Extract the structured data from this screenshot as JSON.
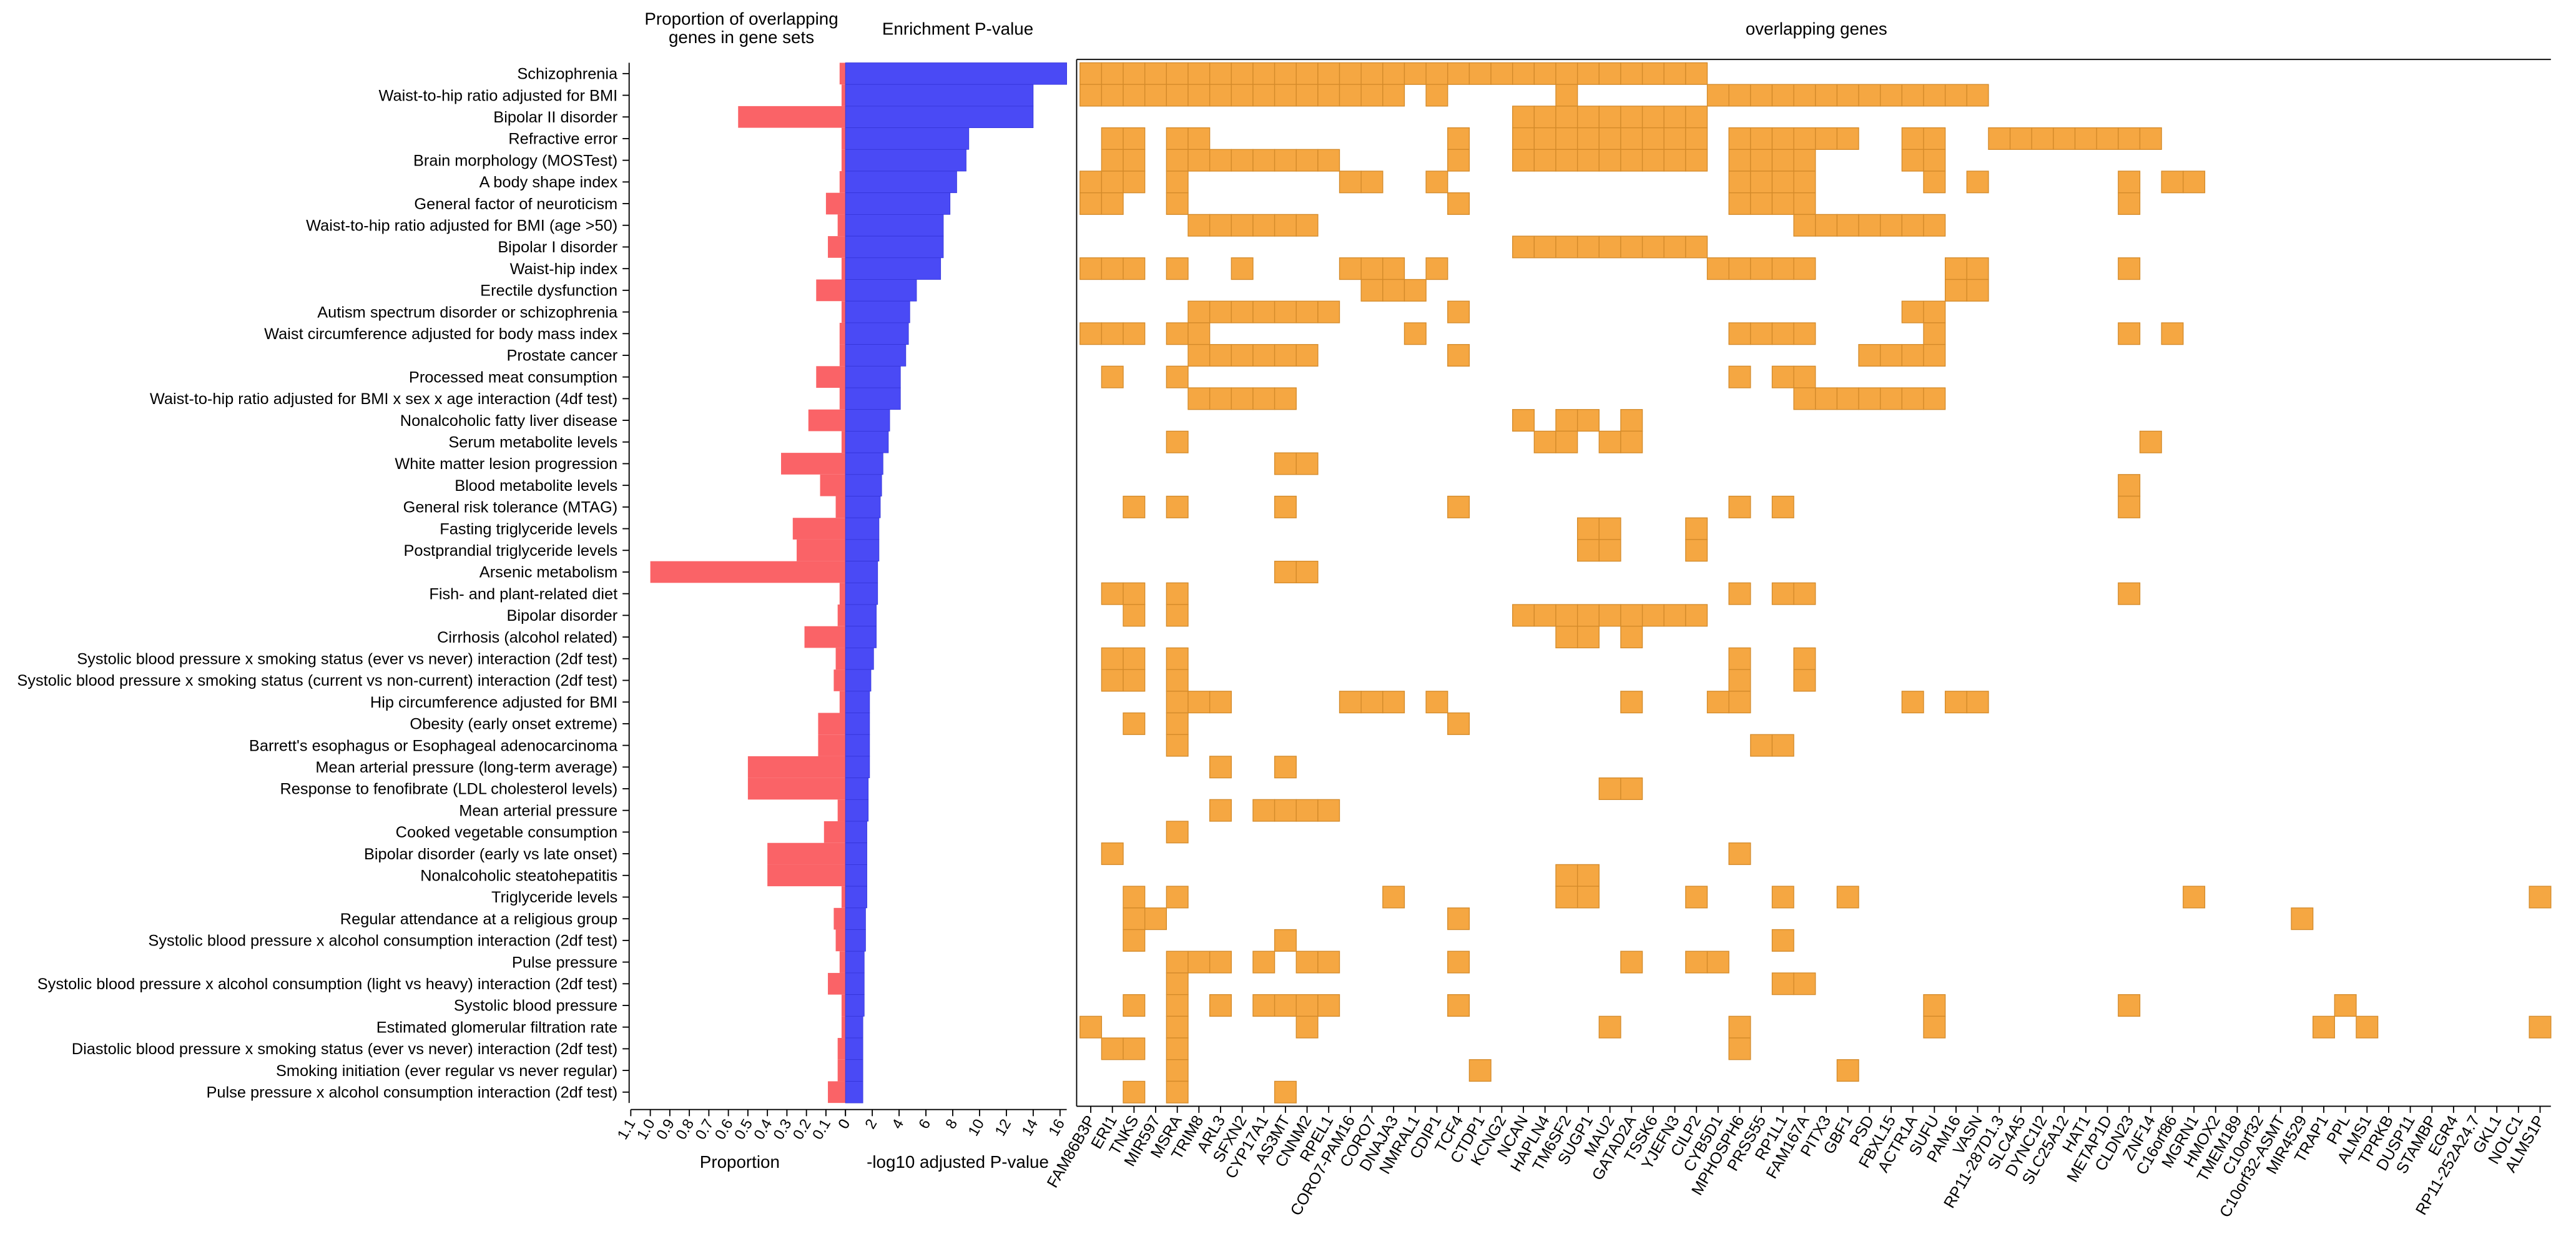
{
  "headers": {
    "proportion_top": "Proportion of overlapping genes in gene sets",
    "enrichment_top": "Enrichment P-value",
    "genes_top": "overlapping genes",
    "proportion_axis": "Proportion",
    "pvalue_axis": "-log10 adjusted P-value"
  },
  "colors": {
    "proportion_bar": "#fa6367",
    "pvalue_bar": "#4a4af5",
    "cell": "#f5a742",
    "cell_border": "#d38a2a"
  },
  "chart_data": {
    "type": "heatmap",
    "gene_sets": [
      "Schizophrenia",
      "Waist-to-hip ratio adjusted for BMI",
      "Bipolar II disorder",
      "Refractive error",
      "Brain morphology (MOSTest)",
      "A body shape index",
      "General factor of neuroticism",
      "Waist-to-hip ratio adjusted for BMI (age >50)",
      "Bipolar I disorder",
      "Waist-hip index",
      "Erectile dysfunction",
      "Autism spectrum disorder or schizophrenia",
      "Waist circumference adjusted for body mass index",
      "Prostate cancer",
      "Processed meat consumption",
      "Waist-to-hip ratio adjusted for BMI x sex x age interaction (4df test)",
      "Nonalcoholic fatty liver disease",
      "Serum metabolite levels",
      "White matter lesion progression",
      "Blood metabolite levels",
      "General risk tolerance (MTAG)",
      "Fasting triglyceride levels",
      "Postprandial triglyceride levels",
      "Arsenic metabolism",
      "Fish- and plant-related diet",
      "Bipolar disorder",
      "Cirrhosis (alcohol related)",
      "Systolic blood pressure x smoking status (ever vs never) interaction (2df test)",
      "Systolic blood pressure x smoking status (current vs non-current) interaction (2df test)",
      "Hip circumference adjusted for BMI",
      "Obesity (early onset extreme)",
      "Barrett's esophagus or Esophageal adenocarcinoma",
      "Mean arterial pressure (long-term average)",
      "Response to fenofibrate (LDL cholesterol levels)",
      "Mean arterial pressure",
      "Cooked vegetable consumption",
      "Bipolar disorder (early vs late onset)",
      "Nonalcoholic steatohepatitis",
      "Triglyceride levels",
      "Regular attendance at a religious group",
      "Systolic blood pressure x alcohol consumption interaction (2df test)",
      "Pulse pressure",
      "Systolic blood pressure x alcohol consumption (light vs heavy) interaction (2df test)",
      "Systolic blood pressure",
      "Estimated glomerular filtration rate",
      "Diastolic blood pressure x smoking status (ever vs never) interaction (2df test)",
      "Smoking initiation (ever regular vs never regular)",
      "Pulse pressure x alcohol consumption interaction (2df test)"
    ],
    "proportion": [
      0.03,
      0.02,
      0.55,
      0.02,
      0.02,
      0.03,
      0.1,
      0.04,
      0.09,
      0.02,
      0.15,
      0.02,
      0.03,
      0.03,
      0.15,
      0.03,
      0.19,
      0.02,
      0.33,
      0.13,
      0.05,
      0.27,
      0.25,
      1.0,
      0.03,
      0.04,
      0.21,
      0.05,
      0.06,
      0.03,
      0.14,
      0.14,
      0.5,
      0.5,
      0.04,
      0.11,
      0.4,
      0.4,
      0.02,
      0.06,
      0.05,
      0.03,
      0.09,
      0.02,
      0.02,
      0.04,
      0.04,
      0.09
    ],
    "neg_log10_p": [
      16.5,
      14.0,
      14.0,
      9.2,
      9.0,
      8.3,
      7.8,
      7.3,
      7.3,
      7.1,
      5.3,
      4.8,
      4.7,
      4.5,
      4.1,
      4.1,
      3.3,
      3.2,
      2.8,
      2.7,
      2.6,
      2.5,
      2.5,
      2.4,
      2.4,
      2.3,
      2.3,
      2.1,
      1.9,
      1.8,
      1.8,
      1.8,
      1.8,
      1.7,
      1.7,
      1.6,
      1.6,
      1.6,
      1.6,
      1.5,
      1.5,
      1.4,
      1.4,
      1.4,
      1.3,
      1.3,
      1.3,
      1.3
    ],
    "proportion_ticks": [
      "1.1",
      "1.0",
      "0.9",
      "0.8",
      "0.7",
      "0.6",
      "0.5",
      "0.4",
      "0.3",
      "0.2",
      "0.1",
      "0"
    ],
    "proportion_range": [
      0,
      1.1
    ],
    "pvalue_ticks": [
      "0",
      "2",
      "4",
      "6",
      "8",
      "10",
      "12",
      "14",
      "16"
    ],
    "pvalue_range": [
      0,
      16.5
    ],
    "genes": [
      "FAM86B3P",
      "ERI1",
      "TNKS",
      "MIR597",
      "MSRA",
      "TRIM8",
      "ARL3",
      "SFXN2",
      "CYP17A1",
      "AS3MT",
      "CNNM2",
      "RPEL1",
      "CORO7-PAM16",
      "CORO7",
      "DNAJA3",
      "NMRAL1",
      "CDIP1",
      "TCF4",
      "CTDP1",
      "KCNG2",
      "NCAN",
      "HAPLN4",
      "TM6SF2",
      "SUGP1",
      "MAU2",
      "GATAD2A",
      "TSSK6",
      "YJEFN3",
      "CILP2",
      "CYB5D1",
      "MPHOSPH6",
      "PRSS55",
      "RP1L1",
      "FAM167A",
      "PITX3",
      "GBF1",
      "PSD",
      "FBXL15",
      "ACTR1A",
      "SUFU",
      "PAM16",
      "VASN",
      "RP11-287D1.3",
      "SLC4A5",
      "DYNC1I2",
      "SLC25A12",
      "HAT1",
      "METAP1D",
      "CLDN23",
      "ZNF14",
      "C16orf86",
      "MGRN1",
      "HMOX2",
      "TMEM189",
      "C10orf32",
      "C10orf32-ASMT",
      "MIR4529",
      "TRAP1",
      "PPL",
      "ALMS1",
      "TPRKB",
      "DUSP11",
      "STAMBP",
      "EGR4",
      "RP11-252A24.7",
      "GKL1",
      "NOLC1",
      "ALMS1P"
    ],
    "cells": [
      [
        0,
        1,
        2,
        3,
        4,
        5,
        6,
        7,
        8,
        9,
        10,
        11,
        12,
        13,
        14,
        15,
        16,
        17,
        18,
        19,
        20,
        21,
        22,
        23,
        24,
        25,
        26,
        27,
        28
      ],
      [
        0,
        1,
        2,
        3,
        4,
        5,
        6,
        7,
        8,
        9,
        10,
        11,
        12,
        13,
        14,
        16,
        22,
        29,
        30,
        31,
        32,
        33,
        34,
        35,
        36,
        37,
        38,
        39,
        40,
        41
      ],
      [
        20,
        21,
        22,
        23,
        24,
        25,
        26,
        27,
        28
      ],
      [
        1,
        2,
        4,
        5,
        17,
        20,
        21,
        22,
        23,
        24,
        25,
        26,
        27,
        28,
        30,
        31,
        32,
        33,
        34,
        35,
        38,
        39,
        42,
        43,
        44,
        45,
        46,
        47,
        48,
        49
      ],
      [
        1,
        2,
        4,
        5,
        6,
        7,
        8,
        9,
        10,
        11,
        17,
        20,
        21,
        22,
        23,
        24,
        25,
        26,
        27,
        28,
        30,
        31,
        32,
        33,
        38,
        39
      ],
      [
        0,
        1,
        2,
        4,
        12,
        13,
        16,
        30,
        31,
        32,
        33,
        39,
        41,
        48,
        50,
        51
      ],
      [
        0,
        1,
        4,
        17,
        30,
        31,
        32,
        33,
        48
      ],
      [
        5,
        6,
        7,
        8,
        9,
        10,
        33,
        34,
        35,
        36,
        37,
        38,
        39
      ],
      [
        20,
        21,
        22,
        23,
        24,
        25,
        26,
        27,
        28
      ],
      [
        0,
        1,
        2,
        4,
        7,
        12,
        13,
        14,
        16,
        29,
        30,
        31,
        32,
        33,
        40,
        41,
        48
      ],
      [
        13,
        14,
        15,
        40,
        41
      ],
      [
        5,
        6,
        7,
        8,
        9,
        10,
        11,
        17,
        38,
        39
      ],
      [
        0,
        1,
        2,
        4,
        5,
        15,
        30,
        31,
        32,
        33,
        39,
        48,
        50
      ],
      [
        5,
        6,
        7,
        8,
        9,
        10,
        17,
        36,
        37,
        38,
        39
      ],
      [
        1,
        4,
        30,
        32,
        33
      ],
      [
        5,
        6,
        7,
        8,
        9,
        33,
        34,
        35,
        36,
        37,
        38,
        39
      ],
      [
        20,
        22,
        23,
        25
      ],
      [
        4,
        21,
        22,
        24,
        25,
        49
      ],
      [
        9,
        10
      ],
      [
        48
      ],
      [
        2,
        4,
        9,
        17,
        30,
        32,
        48
      ],
      [
        23,
        24,
        28
      ],
      [
        23,
        24,
        28
      ],
      [
        9,
        10
      ],
      [
        1,
        2,
        4,
        30,
        32,
        33,
        48
      ],
      [
        2,
        4,
        20,
        21,
        22,
        23,
        24,
        25,
        26,
        27,
        28
      ],
      [
        22,
        23,
        25
      ],
      [
        1,
        2,
        4,
        30,
        33
      ],
      [
        1,
        2,
        4,
        30,
        33
      ],
      [
        4,
        5,
        6,
        12,
        13,
        14,
        16,
        25,
        29,
        30,
        38,
        40,
        41
      ],
      [
        2,
        4,
        17
      ],
      [
        4,
        31,
        32
      ],
      [
        6,
        9
      ],
      [
        24,
        25
      ],
      [
        6,
        8,
        9,
        10,
        11
      ],
      [
        4
      ],
      [
        1,
        30
      ],
      [
        22,
        23
      ],
      [
        2,
        4,
        14,
        22,
        23,
        28,
        32,
        35,
        51,
        67
      ],
      [
        2,
        3,
        17,
        56
      ],
      [
        2,
        9,
        32
      ],
      [
        4,
        5,
        6,
        8,
        10,
        11,
        17,
        25,
        28,
        29
      ],
      [
        4,
        32,
        33
      ],
      [
        2,
        4,
        6,
        8,
        9,
        10,
        11,
        17,
        39,
        48,
        58
      ],
      [
        0,
        4,
        10,
        24,
        30,
        39,
        57,
        59,
        67
      ],
      [
        1,
        2,
        4,
        30
      ],
      [
        4,
        18,
        35
      ],
      [
        2,
        4,
        9
      ]
    ]
  }
}
